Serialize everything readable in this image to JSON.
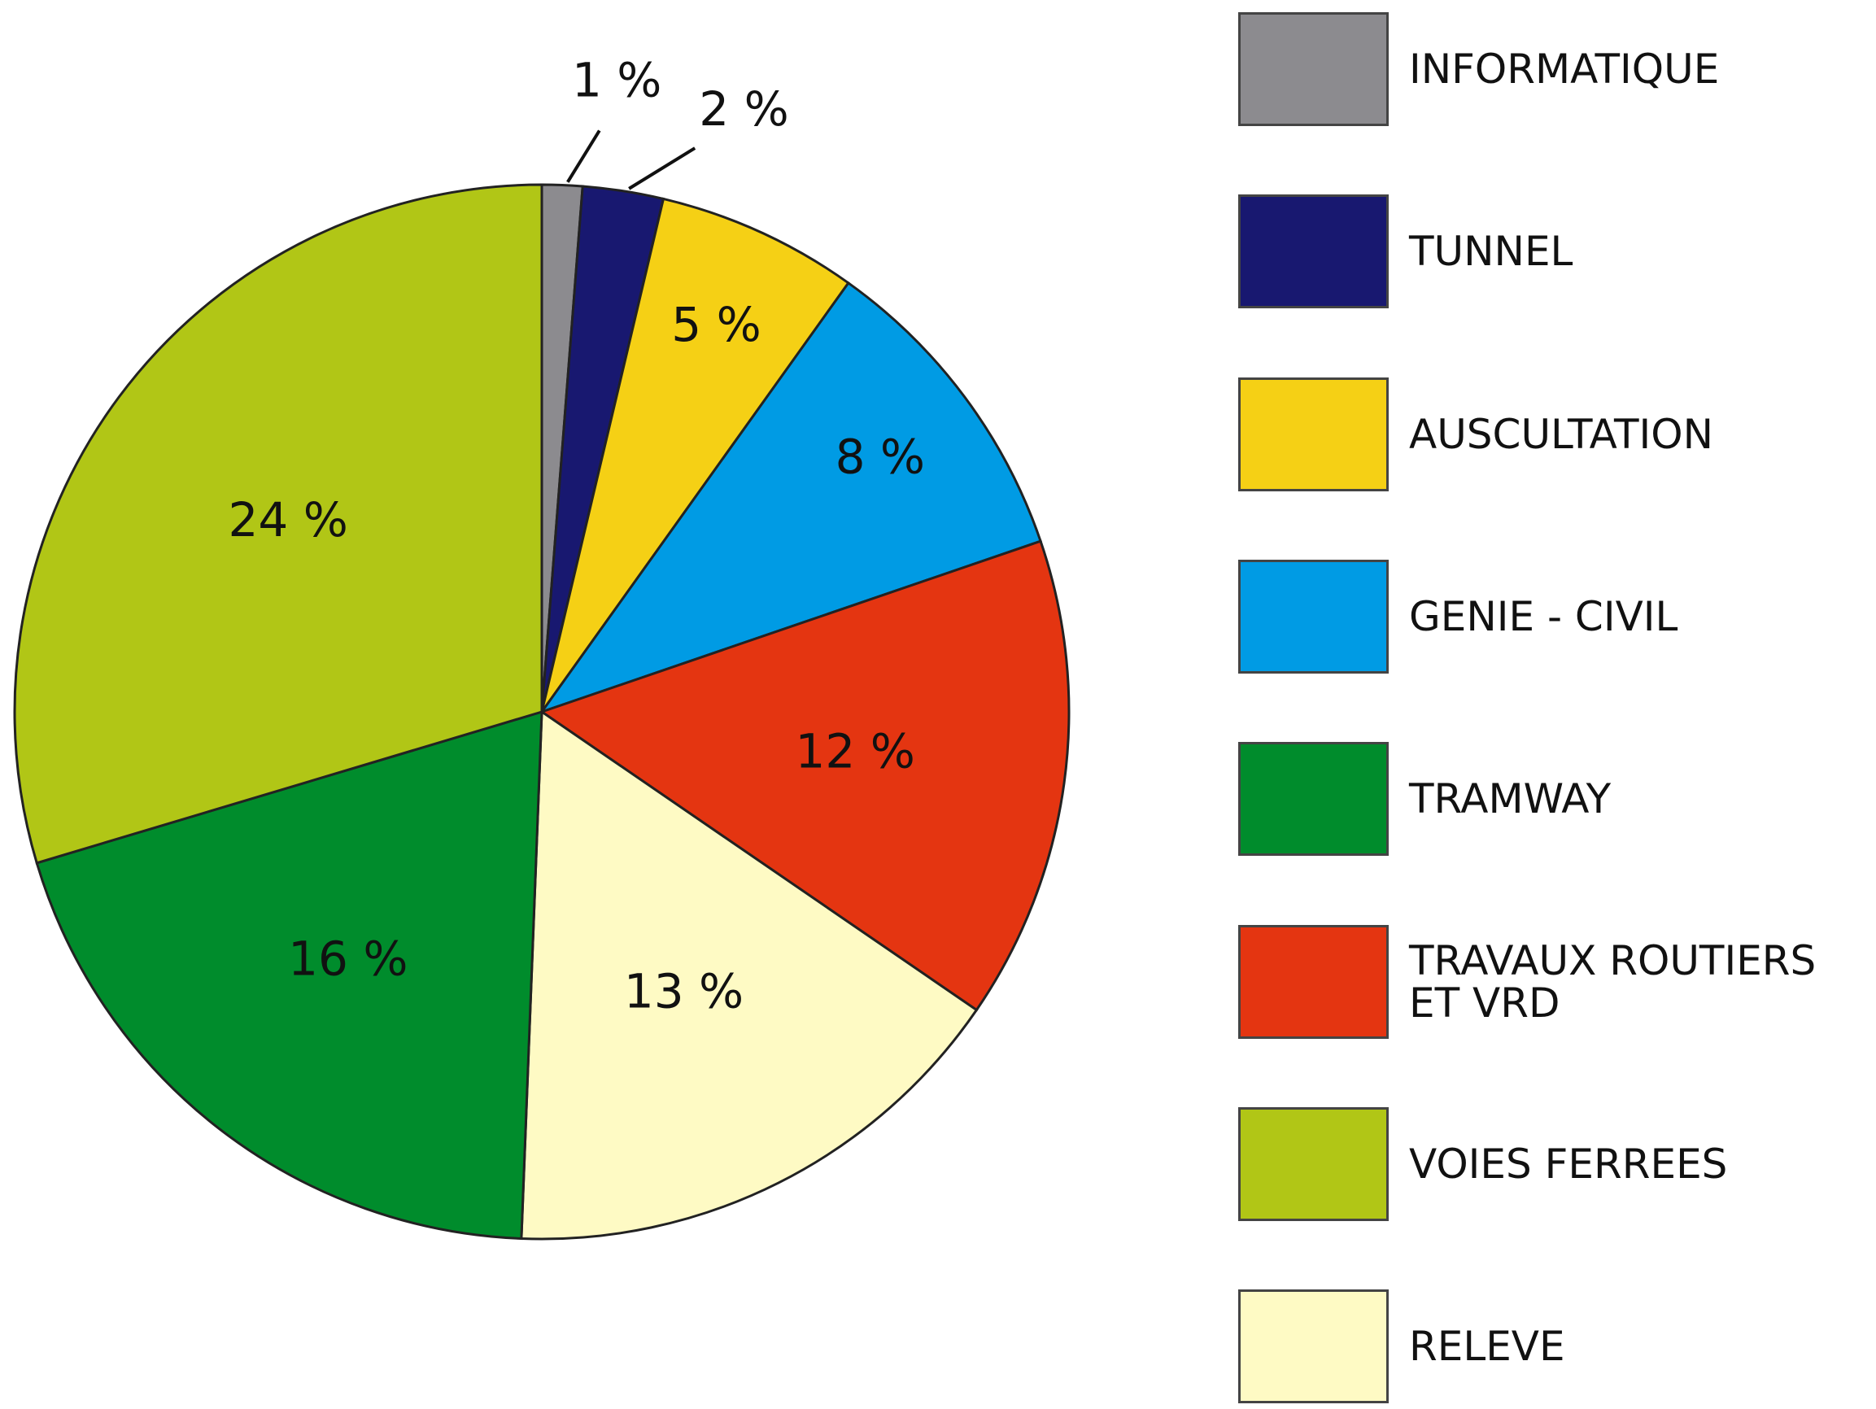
{
  "chart_data": {
    "type": "pie",
    "categories": [
      "INFORMATIQUE",
      "TUNNEL",
      "AUSCULTATION",
      "GENIE - CIVIL",
      "TRAVAUX ROUTIERS ET VRD",
      "RELEVE",
      "TRAMWAY",
      "VOIES FERREES"
    ],
    "values": [
      1,
      2,
      5,
      8,
      12,
      13,
      16,
      24
    ],
    "value_labels": [
      "1 %",
      "2 %",
      "5 %",
      "8 %",
      "12 %",
      "13 %",
      "16 %",
      "24 %"
    ],
    "colors": [
      "#8c8b8f",
      "#181870",
      "#f5d015",
      "#009be4",
      "#e43511",
      "#fefac4",
      "#008c2c",
      "#b1c616"
    ],
    "legend": "right"
  }
}
